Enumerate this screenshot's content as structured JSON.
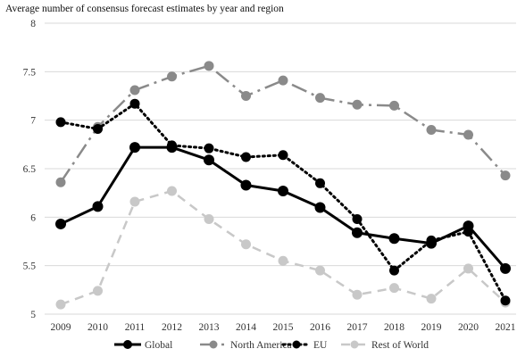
{
  "chart_data": {
    "type": "line",
    "title": "Average number of consensus forecast estimates by year and region",
    "xlabel": "",
    "ylabel": "",
    "x": [
      "2009",
      "2010",
      "2011",
      "2012",
      "2013",
      "2014",
      "2015",
      "2016",
      "2017",
      "2018",
      "2019",
      "2020",
      "2021"
    ],
    "ylim": [
      5,
      8
    ],
    "yticks": [
      "5",
      "5.5",
      "6",
      "6.5",
      "7",
      "7.5",
      "8"
    ],
    "grid": "horizontal",
    "legend_position": "bottom",
    "series": [
      {
        "name": "Global",
        "color": "#000000",
        "line_style": "solid",
        "values": [
          5.93,
          6.11,
          6.72,
          6.72,
          6.59,
          6.33,
          6.27,
          6.1,
          5.84,
          5.78,
          5.73,
          5.91,
          5.47
        ]
      },
      {
        "name": "North America",
        "color": "#8a8a8a",
        "line_style": "long-dash-dot",
        "values": [
          6.36,
          6.93,
          7.31,
          7.45,
          7.56,
          7.25,
          7.41,
          7.23,
          7.16,
          7.15,
          6.9,
          6.85,
          6.43
        ]
      },
      {
        "name": "EU",
        "color": "#000000",
        "line_style": "dotted",
        "values": [
          6.98,
          6.91,
          7.17,
          6.74,
          6.71,
          6.62,
          6.64,
          6.35,
          5.98,
          5.45,
          5.76,
          5.85,
          5.14
        ]
      },
      {
        "name": "Rest of World",
        "color": "#c8c8c8",
        "line_style": "dashed",
        "values": [
          5.1,
          5.24,
          6.16,
          6.27,
          5.98,
          5.72,
          5.55,
          5.45,
          5.2,
          5.27,
          5.16,
          5.47,
          5.12
        ]
      }
    ]
  }
}
